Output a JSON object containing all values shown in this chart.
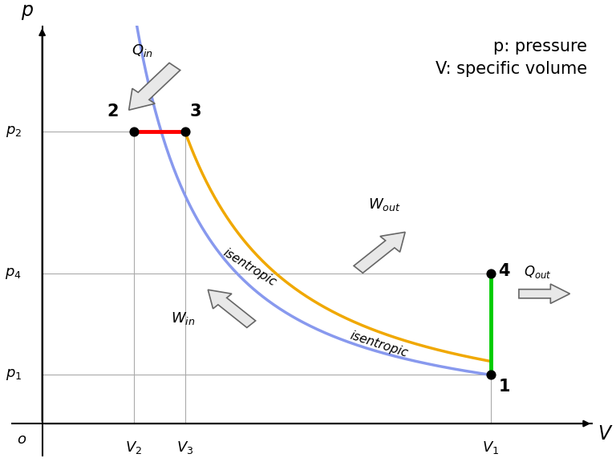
{
  "background_color": "#ffffff",
  "points": {
    "1": {
      "V": 0.88,
      "p": 0.12
    },
    "2": {
      "V": 0.18,
      "p": 0.72
    },
    "3": {
      "V": 0.28,
      "p": 0.72
    },
    "4": {
      "V": 0.88,
      "p": 0.37
    }
  },
  "tick_labels": {
    "V2": 0.18,
    "V3": 0.28,
    "V1": 0.88,
    "p1": 0.12,
    "p2": 0.72,
    "p4": 0.37
  },
  "colors": {
    "red_segment": "#ff0000",
    "yellow_curve": "#f0a800",
    "blue_curve": "#8899ee",
    "green_segment": "#00cc00",
    "grid_line": "#aaaaaa",
    "dot": "#000000",
    "arrow_face": "#e8e8e8",
    "arrow_edge": "#555555"
  },
  "gamma": 1.35,
  "xlim": [
    -0.06,
    1.08
  ],
  "ylim": [
    -0.08,
    0.98
  ]
}
